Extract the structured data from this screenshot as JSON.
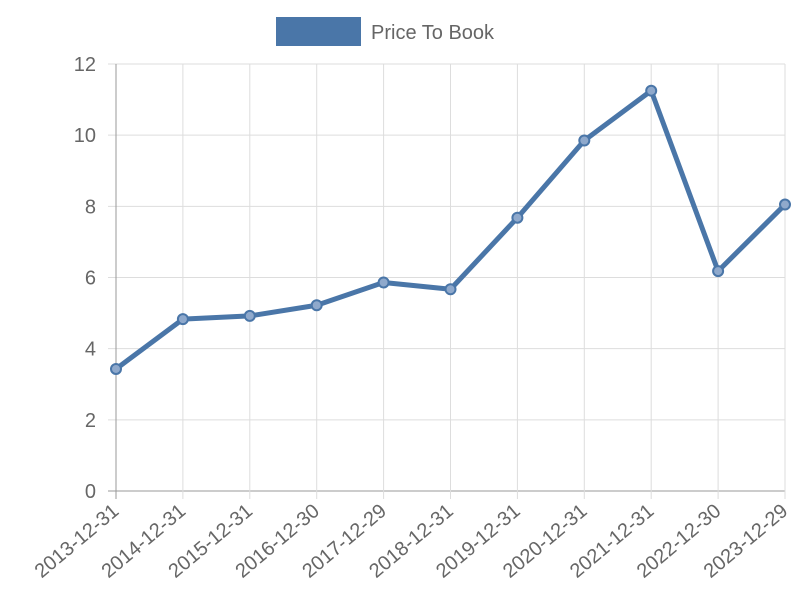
{
  "chart_data": {
    "type": "line",
    "categories": [
      "2013-12-31",
      "2014-12-31",
      "2015-12-31",
      "2016-12-30",
      "2017-12-29",
      "2018-12-31",
      "2019-12-31",
      "2020-12-31",
      "2021-12-31",
      "2022-12-30",
      "2023-12-29"
    ],
    "series": [
      {
        "name": "Price To Book",
        "color": "#4a76a8",
        "values": [
          3.43,
          4.83,
          4.92,
          5.22,
          5.86,
          5.67,
          7.68,
          9.85,
          11.25,
          6.18,
          8.05
        ]
      }
    ],
    "ylim": [
      0,
      12
    ],
    "yticks": [
      0,
      2,
      4,
      6,
      8,
      10,
      12
    ],
    "grid": true,
    "legend": "top"
  }
}
